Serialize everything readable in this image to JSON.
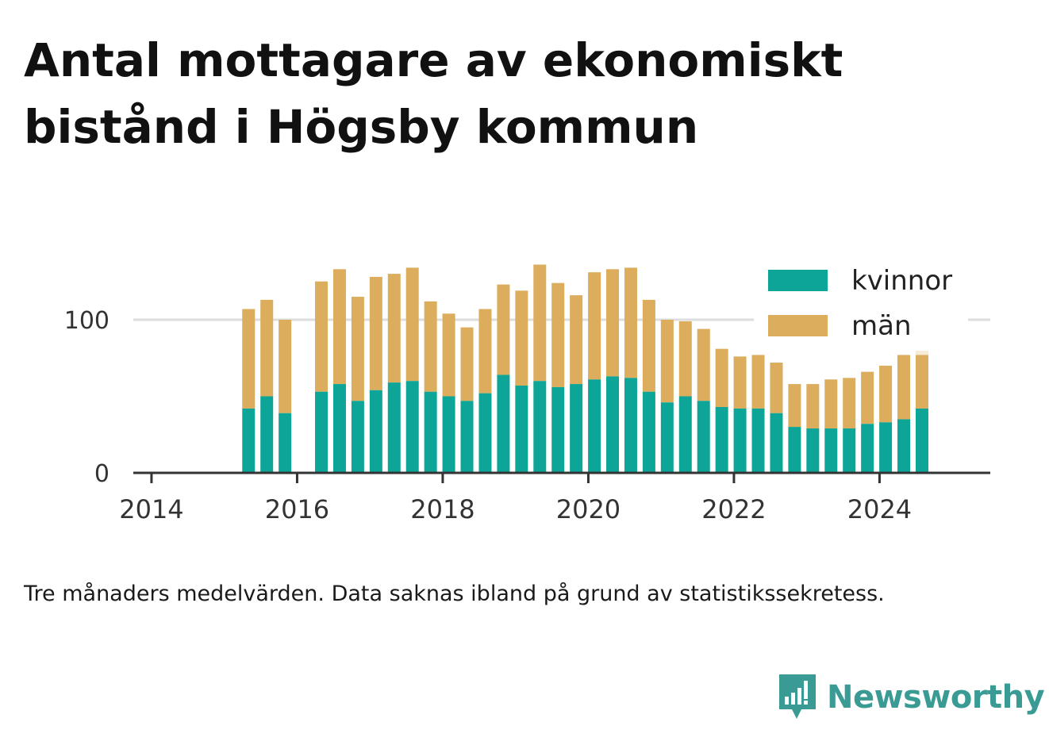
{
  "title": "Antal mottagare av ekonomiskt bistånd i Högsby kommun",
  "note": "Tre månaders medelvärden. Data saknas ibland på grund av statistikssekretess.",
  "brand": "Newsworthy",
  "colors": {
    "kvinnor": "#0ca597",
    "man": "#dbad5c",
    "preliminary": "#f6ecd8",
    "grid": "#dddddd",
    "axis": "#333333"
  },
  "chart_data": {
    "type": "bar",
    "stacked": true,
    "title": "Antal mottagare av ekonomiskt bistånd i Högsby kommun",
    "x_ticks": [
      "2014",
      "2016",
      "2018",
      "2020",
      "2022",
      "2024"
    ],
    "y_ticks": [
      "0",
      "100"
    ],
    "ylim": [
      0,
      140
    ],
    "grid": "horizontal",
    "legend_position": "top-right",
    "x": [
      "2015-05",
      "2015-08",
      "2015-11",
      "2016-05",
      "2016-08",
      "2016-11",
      "2017-02",
      "2017-05",
      "2017-08",
      "2017-11",
      "2018-02",
      "2018-05",
      "2018-08",
      "2018-11",
      "2019-02",
      "2019-05",
      "2019-08",
      "2019-11",
      "2020-02",
      "2020-05",
      "2020-08",
      "2020-11",
      "2021-02",
      "2021-05",
      "2021-08",
      "2021-11",
      "2022-02",
      "2022-05",
      "2022-08",
      "2022-11",
      "2023-02",
      "2023-05",
      "2023-08",
      "2023-11",
      "2024-02",
      "2024-05",
      "2024-08"
    ],
    "series": [
      {
        "name": "kvinnor",
        "values": [
          42,
          50,
          39,
          53,
          58,
          47,
          54,
          59,
          60,
          53,
          50,
          47,
          52,
          64,
          57,
          60,
          56,
          58,
          61,
          63,
          62,
          53,
          46,
          50,
          47,
          43,
          42,
          42,
          39,
          30,
          29,
          29,
          29,
          32,
          33,
          35,
          42
        ]
      },
      {
        "name": "män",
        "values": [
          65,
          63,
          61,
          72,
          75,
          68,
          74,
          71,
          74,
          59,
          54,
          48,
          55,
          59,
          62,
          76,
          68,
          58,
          70,
          70,
          72,
          60,
          54,
          49,
          47,
          38,
          34,
          35,
          33,
          28,
          29,
          32,
          33,
          34,
          37,
          42,
          35
        ]
      }
    ],
    "preliminary_extra": {
      "x": "2024-08",
      "value": 7
    }
  }
}
